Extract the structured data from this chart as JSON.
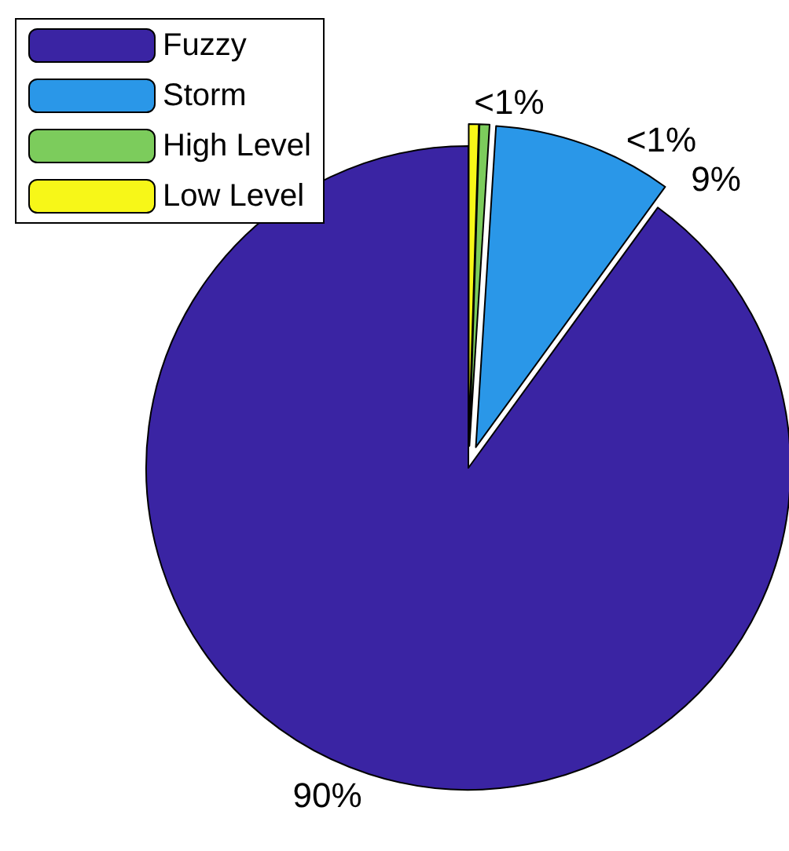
{
  "chart_data": {
    "type": "pie",
    "categories": [
      "Fuzzy",
      "Storm",
      "High Level",
      "Low Level"
    ],
    "values": [
      90,
      9,
      0.5,
      0.5
    ],
    "colors": [
      "#3a24a3",
      "#2a97e8",
      "#7ccc5c",
      "#f7f718"
    ],
    "value_labels": [
      "90%",
      "9%",
      "<1%",
      "<1%"
    ],
    "legend": "top left"
  }
}
